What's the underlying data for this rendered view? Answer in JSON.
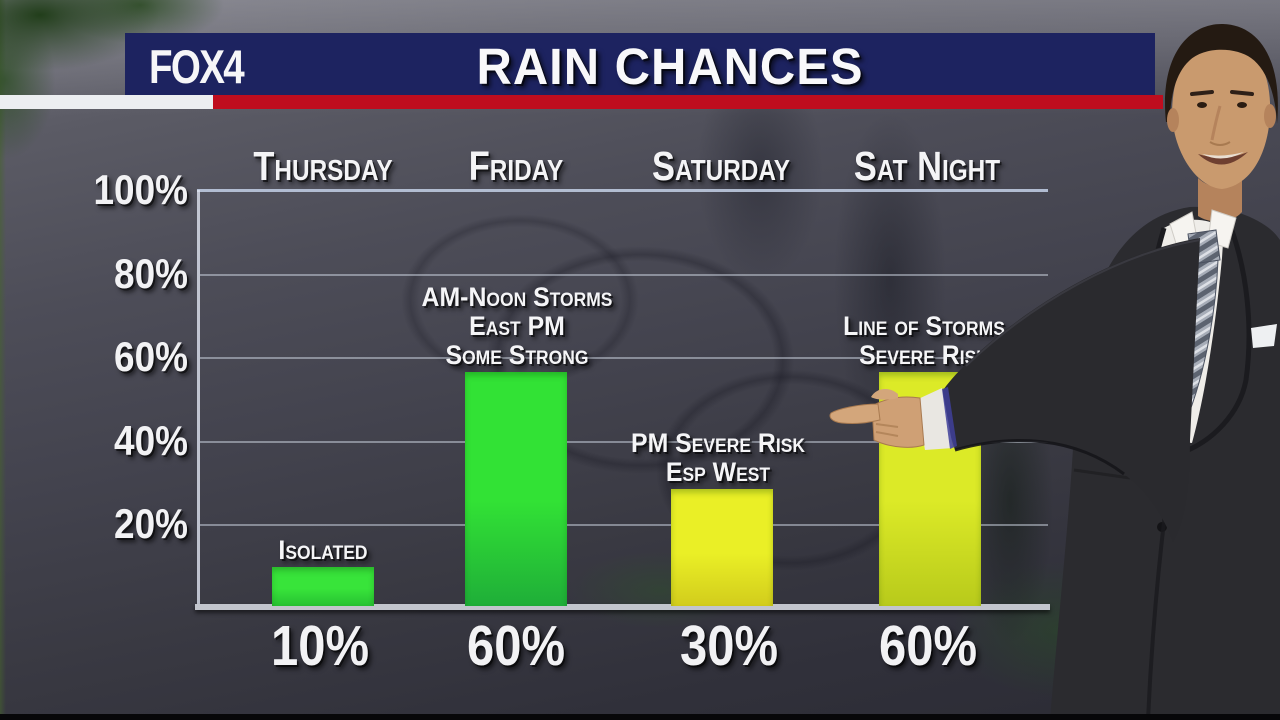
{
  "header": {
    "station_logo": "FOX4",
    "title": "RAIN CHANCES",
    "bar_color": "#1d2360",
    "stripe_red": "#bf0d1e",
    "stripe_white": "#eceef1"
  },
  "chart_data": {
    "type": "bar",
    "title": "RAIN CHANCES",
    "xlabel": "",
    "ylabel": "",
    "ylim": [
      0,
      100
    ],
    "grid": true,
    "y_ticks": [
      "100%",
      "80%",
      "60%",
      "40%",
      "20%"
    ],
    "categories": [
      "Thursday",
      "Friday",
      "Saturday",
      "Sat Night"
    ],
    "values": [
      10,
      60,
      30,
      60
    ],
    "days": [
      {
        "label": "Thursday",
        "value": 10,
        "value_label": "10%",
        "note_lines": [
          "Isolated"
        ],
        "bar_top": "#38e43a",
        "bar_bottom": "#27c232"
      },
      {
        "label": "Friday",
        "value": 60,
        "value_label": "60%",
        "note_lines": [
          "AM-Noon Storms",
          "East PM",
          "Some Strong"
        ],
        "bar_top": "#32e235",
        "bar_bottom": "#1fae38"
      },
      {
        "label": "Saturday",
        "value": 30,
        "value_label": "30%",
        "note_lines": [
          "PM Severe Risk",
          "Esp West"
        ],
        "bar_top": "#eaef26",
        "bar_bottom": "#d2cc1c"
      },
      {
        "label": "Sat Night",
        "value": 60,
        "value_label": "60%",
        "note_lines": [
          "Line of Storms",
          "Severe Risk"
        ],
        "bar_top": "#dcea27",
        "bar_bottom": "#b8ca1b"
      }
    ]
  }
}
